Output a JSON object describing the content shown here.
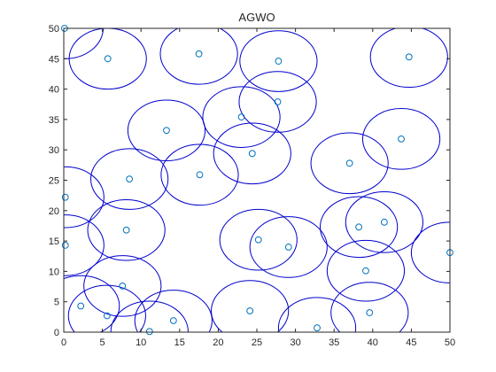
{
  "chart_data": {
    "type": "scatter",
    "title": "AGWO",
    "xlabel": "",
    "ylabel": "",
    "xlim": [
      0,
      50
    ],
    "ylim": [
      0,
      50
    ],
    "xticks": [
      "0",
      "5",
      "10",
      "15",
      "20",
      "25",
      "30",
      "35",
      "40",
      "45",
      "50"
    ],
    "yticks": [
      "0",
      "5",
      "10",
      "15",
      "20",
      "25",
      "30",
      "35",
      "40",
      "45",
      "50"
    ],
    "grid": false,
    "legend": "none",
    "sensing_radius": 5,
    "colors": {
      "marker": "#0072BD",
      "circle": "#0000CD",
      "axis": "#262626"
    },
    "points": [
      {
        "x": 0.1,
        "y": 50.0
      },
      {
        "x": 5.7,
        "y": 45.0
      },
      {
        "x": 17.5,
        "y": 45.8
      },
      {
        "x": 27.8,
        "y": 44.6
      },
      {
        "x": 44.7,
        "y": 45.3
      },
      {
        "x": 27.7,
        "y": 37.9
      },
      {
        "x": 23.0,
        "y": 35.4
      },
      {
        "x": 13.3,
        "y": 33.2
      },
      {
        "x": 43.7,
        "y": 31.8
      },
      {
        "x": 24.4,
        "y": 29.4
      },
      {
        "x": 37.0,
        "y": 27.8
      },
      {
        "x": 17.6,
        "y": 25.9
      },
      {
        "x": 8.5,
        "y": 25.2
      },
      {
        "x": 0.2,
        "y": 22.2
      },
      {
        "x": 41.5,
        "y": 18.1
      },
      {
        "x": 38.2,
        "y": 17.3
      },
      {
        "x": 8.1,
        "y": 16.8
      },
      {
        "x": 25.2,
        "y": 15.2
      },
      {
        "x": 29.1,
        "y": 14.0
      },
      {
        "x": 0.2,
        "y": 14.3
      },
      {
        "x": 50.0,
        "y": 13.1
      },
      {
        "x": 39.1,
        "y": 10.1
      },
      {
        "x": 7.6,
        "y": 7.6
      },
      {
        "x": 2.2,
        "y": 4.3
      },
      {
        "x": 24.1,
        "y": 3.5
      },
      {
        "x": 39.6,
        "y": 3.2
      },
      {
        "x": 5.6,
        "y": 2.7
      },
      {
        "x": 14.2,
        "y": 1.9
      },
      {
        "x": 32.8,
        "y": 0.7
      },
      {
        "x": 11.1,
        "y": 0.1
      }
    ]
  }
}
